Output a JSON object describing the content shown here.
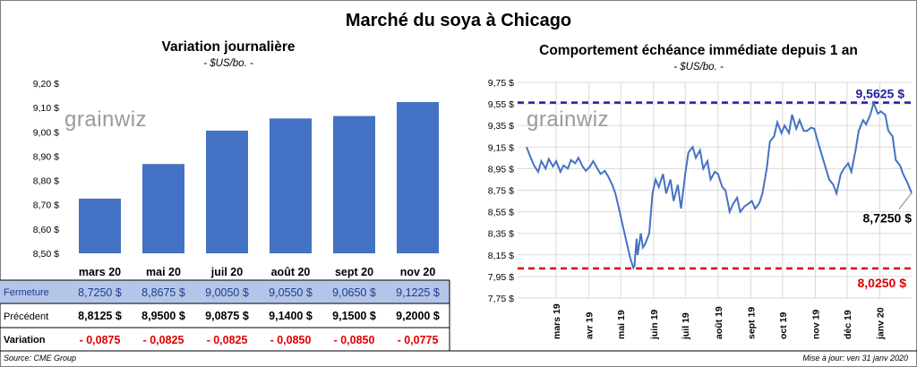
{
  "title": "Marché du soya à Chicago",
  "left": {
    "title": "Variation journalière",
    "unit": "- $US/bo. -",
    "watermark": "grainwiz"
  },
  "right": {
    "title": "Comportement échéance immédiate depuis 1 an",
    "unit": "- $US/bo. -",
    "watermark": "grainwiz",
    "high_label": "9,5625 $",
    "low_label": "8,0250 $",
    "last_label": "8,7250 $"
  },
  "table": {
    "row_labels": [
      "Fermeture",
      "Précédent",
      "Variation"
    ],
    "close": [
      "8,7250  $",
      "8,8675  $",
      "9,0050  $",
      "9,0550  $",
      "9,0650  $",
      "9,1225  $"
    ],
    "previous": [
      "8,8125  $",
      "8,9500  $",
      "9,0875  $",
      "9,1400  $",
      "9,1500  $",
      "9,2000  $"
    ],
    "change": [
      "- 0,0875",
      "- 0,0825",
      "- 0,0825",
      "- 0,0850",
      "- 0,0850",
      "- 0,0775"
    ]
  },
  "footer": {
    "source": "Source: CME Group",
    "updated": "Mise à jour: ven 31 janv 2020"
  },
  "colors": {
    "bar": "#4472c4",
    "line": "#4472c4",
    "high_line": "#1f1f9e",
    "low_line": "#e00000",
    "negative": "#e00000",
    "close_row_bg": "#b4c6e7"
  },
  "chart_data": [
    {
      "type": "bar",
      "title": "Variation journalière",
      "ylabel": "$US/bo.",
      "categories": [
        "mars 20",
        "mai 20",
        "juil 20",
        "août 20",
        "sept 20",
        "nov 20"
      ],
      "values": [
        8.725,
        8.8675,
        9.005,
        9.055,
        9.065,
        9.1225
      ],
      "ylim": [
        8.5,
        9.2
      ],
      "yticks": [
        "8,50 $",
        "8,60 $",
        "8,70 $",
        "8,80 $",
        "8,90 $",
        "9,00 $",
        "9,10 $",
        "9,20 $"
      ],
      "grid": false
    },
    {
      "type": "line",
      "title": "Comportement échéance immédiate depuis 1 an",
      "ylabel": "$US/bo.",
      "ylim": [
        7.75,
        9.75
      ],
      "yticks": [
        "7,75 $",
        "7,95 $",
        "8,15 $",
        "8,35 $",
        "8,55 $",
        "8,75 $",
        "8,95 $",
        "9,15 $",
        "9,35 $",
        "9,55 $",
        "9,75 $"
      ],
      "xticks": [
        "mars 19",
        "avr 19",
        "mai 19",
        "juin 19",
        "juil 19",
        "août 19",
        "sept 19",
        "oct 19",
        "nov 19",
        "déc 19",
        "janv 20"
      ],
      "reference_lines": [
        9.5625,
        8.025
      ],
      "grid": true,
      "series": [
        {
          "x": [
            "2019-02-01",
            "2019-02-05",
            "2019-02-08",
            "2019-02-12",
            "2019-02-15",
            "2019-02-19",
            "2019-02-22",
            "2019-02-26",
            "2019-03-01",
            "2019-03-05",
            "2019-03-08",
            "2019-03-12",
            "2019-03-15",
            "2019-03-19",
            "2019-03-22",
            "2019-03-26",
            "2019-03-29",
            "2019-04-02",
            "2019-04-05",
            "2019-04-09",
            "2019-04-12",
            "2019-04-16",
            "2019-04-19",
            "2019-04-23",
            "2019-04-26",
            "2019-04-30",
            "2019-05-03",
            "2019-05-07",
            "2019-05-10",
            "2019-05-13",
            "2019-05-14",
            "2019-05-16",
            "2019-05-17",
            "2019-05-20",
            "2019-05-22",
            "2019-05-24",
            "2019-05-28",
            "2019-05-31",
            "2019-06-03",
            "2019-06-06",
            "2019-06-10",
            "2019-06-13",
            "2019-06-17",
            "2019-06-20",
            "2019-06-24",
            "2019-06-27",
            "2019-07-01",
            "2019-07-04",
            "2019-07-08",
            "2019-07-11",
            "2019-07-15",
            "2019-07-18",
            "2019-07-22",
            "2019-07-25",
            "2019-07-29",
            "2019-08-01",
            "2019-08-05",
            "2019-08-08",
            "2019-08-12",
            "2019-08-15",
            "2019-08-19",
            "2019-08-22",
            "2019-08-26",
            "2019-08-29",
            "2019-09-02",
            "2019-09-05",
            "2019-09-09",
            "2019-09-12",
            "2019-09-16",
            "2019-09-19",
            "2019-09-23",
            "2019-09-26",
            "2019-09-30",
            "2019-10-03",
            "2019-10-07",
            "2019-10-10",
            "2019-10-14",
            "2019-10-17",
            "2019-10-21",
            "2019-10-24",
            "2019-10-28",
            "2019-10-31",
            "2019-11-04",
            "2019-11-07",
            "2019-11-11",
            "2019-11-14",
            "2019-11-18",
            "2019-11-21",
            "2019-11-25",
            "2019-11-28",
            "2019-12-02",
            "2019-12-05",
            "2019-12-09",
            "2019-12-12",
            "2019-12-16",
            "2019-12-19",
            "2019-12-23",
            "2019-12-26",
            "2019-12-30",
            "2020-01-02",
            "2020-01-06",
            "2020-01-09",
            "2020-01-13",
            "2020-01-16",
            "2020-01-20",
            "2020-01-23",
            "2020-01-27",
            "2020-01-31"
          ],
          "y": [
            9.15,
            9.05,
            8.98,
            8.92,
            9.02,
            8.95,
            9.04,
            8.97,
            9.02,
            8.92,
            8.98,
            8.95,
            9.03,
            9.0,
            9.05,
            8.97,
            8.93,
            8.97,
            9.02,
            8.95,
            8.9,
            8.93,
            8.88,
            8.8,
            8.72,
            8.55,
            8.42,
            8.25,
            8.12,
            8.03,
            8.05,
            8.3,
            8.15,
            8.35,
            8.22,
            8.25,
            8.35,
            8.72,
            8.85,
            8.78,
            8.9,
            8.72,
            8.85,
            8.65,
            8.8,
            8.58,
            8.9,
            9.1,
            9.15,
            9.05,
            9.12,
            8.95,
            9.02,
            8.85,
            8.92,
            8.9,
            8.78,
            8.75,
            8.55,
            8.62,
            8.68,
            8.55,
            8.6,
            8.62,
            8.65,
            8.58,
            8.63,
            8.72,
            8.95,
            9.2,
            9.25,
            9.38,
            9.28,
            9.35,
            9.28,
            9.45,
            9.32,
            9.4,
            9.3,
            9.3,
            9.33,
            9.32,
            9.18,
            9.08,
            8.95,
            8.85,
            8.8,
            8.72,
            8.9,
            8.95,
            9.0,
            8.92,
            9.12,
            9.3,
            9.4,
            9.36,
            9.45,
            9.56,
            9.46,
            9.48,
            9.45,
            9.3,
            9.25,
            9.03,
            8.98,
            8.9,
            8.82,
            8.725
          ]
        }
      ]
    }
  ]
}
